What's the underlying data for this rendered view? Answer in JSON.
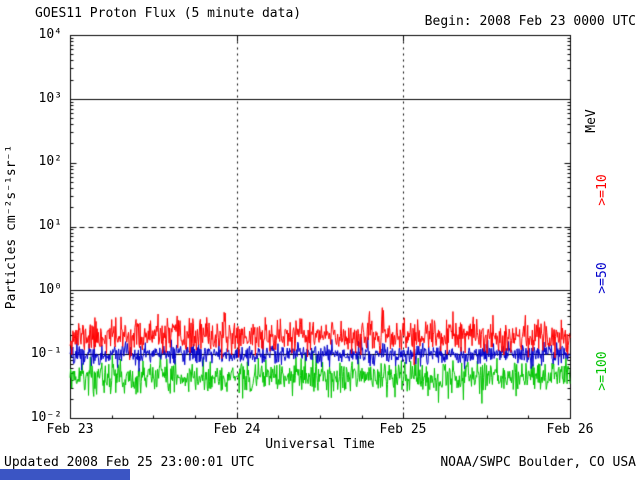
{
  "header": {
    "title": "GOES11 Proton Flux (5 minute data)",
    "begin_label": "Begin: 2008 Feb 23 0000 UTC"
  },
  "footer": {
    "updated": "Updated 2008 Feb 25 23:00:01 UTC",
    "source": "NOAA/SWPC Boulder, CO USA"
  },
  "chart_data": {
    "type": "line",
    "y_scale": "log10",
    "title": "GOES11 Proton Flux (5 minute data)",
    "begin": "2008 Feb 23 0000 UTC",
    "xlabel": "Universal Time",
    "ylabel": "Particles cm⁻²s⁻¹sr⁻¹",
    "right_axis_label": "MeV",
    "x_ticks": [
      "Feb 23",
      "Feb 24",
      "Feb 25",
      "Feb 26"
    ],
    "y_ticks": [
      "10⁴",
      "10³",
      "10²",
      "10¹",
      "10⁰",
      "10⁻¹",
      "10⁻²"
    ],
    "ylim_exp": [
      -2,
      4
    ],
    "x_days": 3,
    "points_per_day": 288,
    "grid": {
      "h_solid_exp": [
        3,
        0,
        -1
      ],
      "h_dashed_exp": [
        1
      ],
      "v_dotted_days": [
        1,
        2
      ]
    },
    "series": [
      {
        "name": ">=10 MeV",
        "label": ">=10",
        "color": "#ff0000",
        "log10_mean": -0.72,
        "log10_std": 0.13,
        "approx_mean_flux": 0.19,
        "approx_flux_range": [
          0.09,
          0.45
        ],
        "seed": 11
      },
      {
        "name": ">=50 MeV",
        "label": ">=50",
        "color": "#0000cc",
        "log10_mean": -1.0,
        "log10_std": 0.08,
        "approx_mean_flux": 0.1,
        "approx_flux_range": [
          0.06,
          0.17
        ],
        "seed": 22
      },
      {
        "name": ">=100 MeV",
        "label": ">=100",
        "color": "#00c400",
        "log10_mean": -1.36,
        "log10_std": 0.13,
        "approx_mean_flux": 0.044,
        "approx_flux_range": [
          0.02,
          0.09
        ],
        "seed": 33
      }
    ]
  }
}
